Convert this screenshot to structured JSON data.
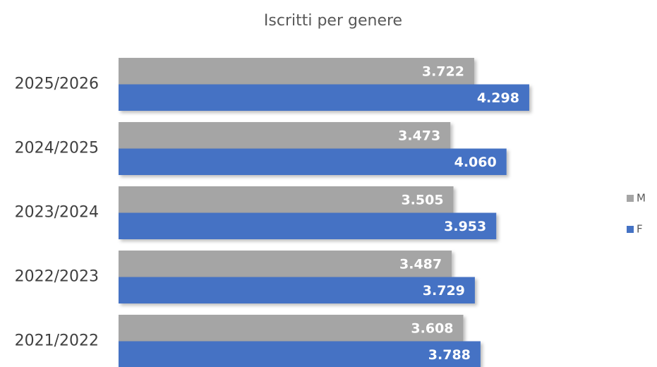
{
  "chart_data": {
    "type": "hbar",
    "title": "Iscritti per genere",
    "categories": [
      "2025/2026",
      "2024/2025",
      "2023/2024",
      "2022/2023",
      "2021/2022"
    ],
    "series": [
      {
        "name": "M",
        "color": "#a5a5a5",
        "values": [
          3722,
          3473,
          3505,
          3487,
          3608
        ],
        "value_labels": [
          "3.722",
          "3.473",
          "3.505",
          "3.487",
          "3.608"
        ]
      },
      {
        "name": "F",
        "color": "#4472c4",
        "values": [
          4298,
          4060,
          3953,
          3729,
          3788
        ],
        "value_labels": [
          "4.298",
          "4.060",
          "3.953",
          "3.729",
          "3.788"
        ]
      }
    ],
    "xlim": [
      0,
      5000
    ],
    "legend": "right"
  }
}
